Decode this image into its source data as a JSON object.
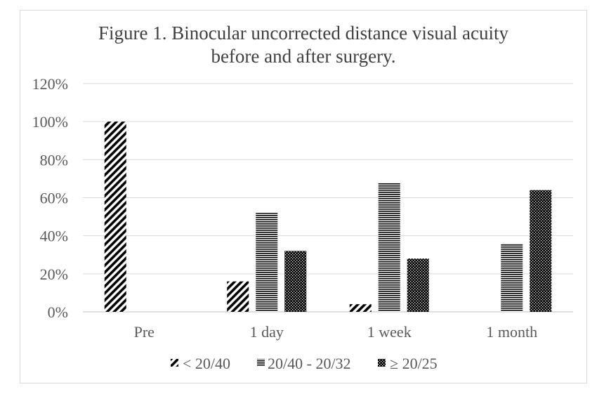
{
  "chart_data": {
    "type": "bar",
    "title_line1": "Figure 1. Binocular uncorrected distance visual acuity",
    "title_line2": "before and after surgery.",
    "categories": [
      "Pre",
      "1 day",
      "1 week",
      "1 month"
    ],
    "series": [
      {
        "name": "< 20/40",
        "values": [
          100,
          16,
          4,
          0
        ],
        "pattern": "diagonal-hatch"
      },
      {
        "name": "20/40 - 20/32",
        "values": [
          0,
          52,
          68,
          36
        ],
        "pattern": "horizontal-lines"
      },
      {
        "name": "≥ 20/25",
        "values": [
          0,
          32,
          28,
          64
        ],
        "pattern": "dots"
      }
    ],
    "y_ticks": [
      "0%",
      "20%",
      "40%",
      "60%",
      "80%",
      "100%",
      "120%"
    ],
    "ylim": [
      0,
      120
    ],
    "grid": true,
    "legend_position": "bottom"
  }
}
